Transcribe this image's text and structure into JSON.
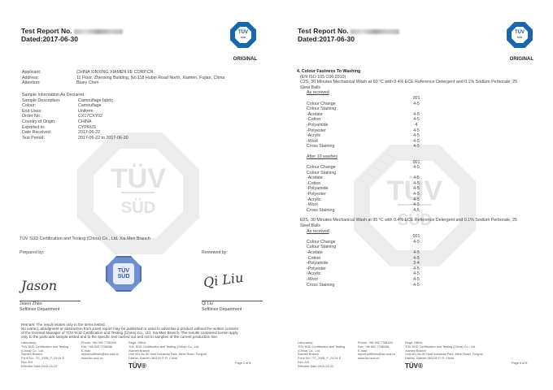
{
  "common": {
    "report_label": "Test Report No.",
    "dated": "Dated:2017-06-30",
    "original": "ORIGINAL",
    "logo_text": "TÜV",
    "logo_sub": "SÜD",
    "watermark": "TÜV",
    "watermark_sub": "SÜD",
    "footer_logo": "TÜV®"
  },
  "page1": {
    "applicant": [
      {
        "label": "Applicant:",
        "value": "CHINA XINXING XIAMEN I/E CORP.CN"
      },
      {
        "label": "Address:",
        "value": "11 Floor, Zhenxing Building, No.118 Hubin Road North, Xiamen, Fujian, China"
      },
      {
        "label": "Attention:",
        "value": "Bluey Chen"
      }
    ],
    "sample_heading": "Sample Information As Declared :",
    "sample": [
      {
        "label": "Sample Description:",
        "value": "Camouflage fabric"
      },
      {
        "label": "Colour:",
        "value": "Camouflage"
      },
      {
        "label": "End Uses:",
        "value": "Uniform"
      },
      {
        "label": "Order No.:",
        "value": "CX17CXY02"
      },
      {
        "label": "Country of Origin:",
        "value": "CHINA"
      },
      {
        "label": "Exported to:",
        "value": "CYPRUS"
      },
      {
        "label": "Date Received:",
        "value": "2017-06-22"
      },
      {
        "label": "Test Period:",
        "value": "2017-06-22 to 2017-06-30"
      }
    ],
    "company": "TÜV SÜD Certification and Testing (China) Co., Ltd. Xia Men Branch",
    "prepared_by": "Prepared by:",
    "reviewed_by": "Reviewed by:",
    "signature_left": "Jason",
    "signature_right": "Qi Liu",
    "preparer_name": "Jason Zhao",
    "preparer_dept": "Softlines  Department",
    "reviewer_name": "Qi Liu",
    "reviewer_dept": "Softlines  Department",
    "stamp_text": "TÜV",
    "stamp_sub": "SÜD",
    "remark": [
      "Remark: The result relates only to the items tested.",
      "No extract, abridgment or abstraction from a test report may be published or used to advertise a product without the written consent",
      "of the General Manager of TÜV SÜD Certification and Testing (China) Co., Ltd. Xia Men Branch. The results contained herein apply",
      "only to the particular sample tested and to the specific test carried out and not to samples of the current production line."
    ],
    "page": "Page 1 of 8"
  },
  "footer": {
    "col1": [
      "Laboratory:",
      "TÜV SÜD Certification and Testing",
      "(China) Co., Ltd.",
      "Xiamen Branch",
      "Form No.: TC_XMN_F_24.04 E",
      "Rev. A/0",
      "Effective Date:2015-03-23"
    ],
    "col2": [
      "Phone: +86 592 7758169",
      "Fax: +86 592 7798288",
      "E-mail:",
      "report.softlines@tuv-sud.cn",
      "www.tuv-sud.cn"
    ],
    "col3": [
      "Regd. Office:",
      "TÜV SÜD Certification and Testing (China) Co., Ltd.",
      "Xiamen Branch",
      "Unit 401 No.50 Hubi Industrial Park, Meixi Road, Tong'an",
      "District, Xiamen 361100 P. R. China"
    ]
  },
  "page4": {
    "section": "4. Colour Fastness To Washing",
    "standard": "(EN ISO 105 C06:2010)",
    "c2s": [
      "C2S, 30 Minutes Mechanical Wash at 60 °C with 0.4% ECE Reference Detergent and 0.1% Sodium Perborate, 25",
      "Steel Balls"
    ],
    "e2s": [
      "E2S, 30 Minutes Mechanical Wash at 95 °C with 0.4% ECE Reference Detergent and 0.1% Sodium Perborate, 25",
      "Steel Balls"
    ],
    "blocks": [
      {
        "title": "As received",
        "sample": "001",
        "rows": [
          [
            "Colour Change",
            "4-5"
          ],
          [
            "Colour Staining",
            ""
          ],
          [
            "-Acetate",
            "4-5"
          ],
          [
            "-Cotton",
            "4-5"
          ],
          [
            "-Polyamide",
            "4"
          ],
          [
            "-Polyester",
            "4-5"
          ],
          [
            "-Acrylic",
            "4-5"
          ],
          [
            "-Wool",
            "4-5"
          ],
          [
            "Cross Staining",
            "4-5"
          ]
        ]
      },
      {
        "title": "After 10 washes",
        "sample": "001",
        "rows": [
          [
            "Colour Change",
            "4-5"
          ],
          [
            "Colour Staining",
            ""
          ],
          [
            "-Acetate",
            "4-5"
          ],
          [
            "-Cotton",
            "4-5"
          ],
          [
            "-Polyamide",
            "4-5"
          ],
          [
            "-Polyester",
            "4-5"
          ],
          [
            "-Acrylic",
            "4-5"
          ],
          [
            "-Wool",
            "4-5"
          ],
          [
            "Cross Staining",
            "4-5"
          ]
        ]
      },
      {
        "title": "As received",
        "sample": "001",
        "rows": [
          [
            "Colour Change",
            "4-5"
          ],
          [
            "Colour Staining",
            ""
          ],
          [
            "-Acetate",
            "4-5"
          ],
          [
            "-Cotton",
            "4-5"
          ],
          [
            "-Polyamide",
            "3-4"
          ],
          [
            "-Polyester",
            "4-5"
          ],
          [
            "-Acrylic",
            "4-5"
          ],
          [
            "-Wool",
            "4-5"
          ],
          [
            "Cross Staining",
            "4-5"
          ]
        ]
      }
    ],
    "page": "Page 4 of 8"
  }
}
